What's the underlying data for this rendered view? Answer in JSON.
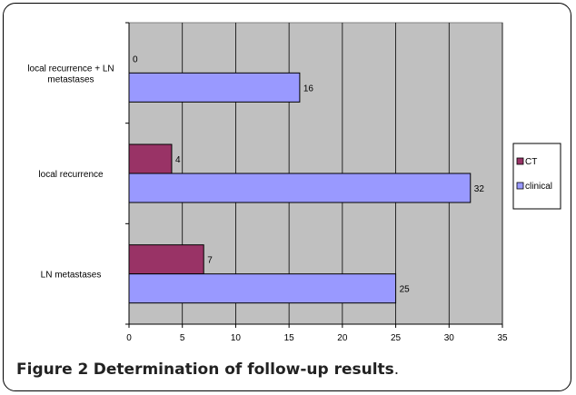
{
  "caption": {
    "figure_label": "Figure 2",
    "text": "Determination of follow-up results",
    "period": "."
  },
  "colors": {
    "plot_bg": "#c0c0c0",
    "CT": "#993366",
    "clinical": "#9999ff"
  },
  "chart_data": {
    "type": "bar",
    "orientation": "horizontal",
    "categories": [
      "local recurrence + LN metastases",
      "local recurrence",
      "LN metastases"
    ],
    "category_label_lines": [
      [
        "local recurrence + LN",
        "metastases"
      ],
      [
        "local recurrence"
      ],
      [
        "LN metastases"
      ]
    ],
    "series": [
      {
        "name": "CT",
        "values": [
          0,
          4,
          7
        ]
      },
      {
        "name": "clinical",
        "values": [
          16,
          32,
          25
        ]
      }
    ],
    "xlim": [
      0,
      35
    ],
    "xticks": [
      0,
      5,
      10,
      15,
      20,
      25,
      30,
      35
    ],
    "grid": true,
    "legend": "right"
  }
}
